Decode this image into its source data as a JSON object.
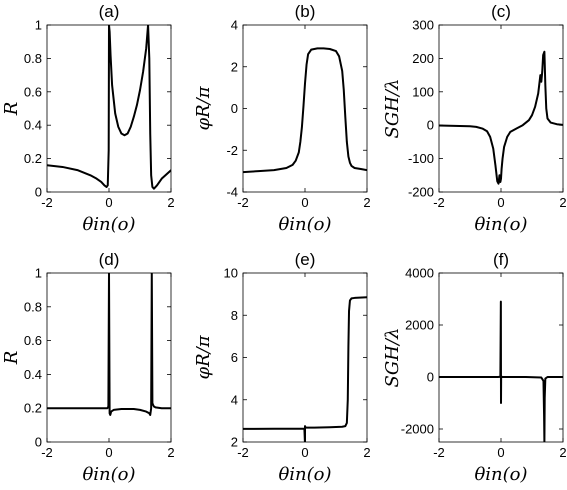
{
  "chart_data": [
    {
      "type": "line",
      "panel_label": "(a)",
      "xlabel": "θin(o)",
      "ylabel": "R",
      "xlim": [
        -2,
        2
      ],
      "ylim": [
        0,
        1
      ],
      "xticks": [
        -2,
        0,
        2
      ],
      "xtick_labels": [
        "-2",
        "0",
        "2"
      ],
      "yticks": [
        0,
        0.2,
        0.4,
        0.6,
        0.8,
        1
      ],
      "ytick_labels": [
        "0",
        "0.2",
        "0.4",
        "0.6",
        "0.8",
        "1"
      ],
      "grid": false,
      "series": [
        {
          "x": [
            -2.0,
            -1.5,
            -1.0,
            -0.6,
            -0.4,
            -0.25,
            -0.15,
            -0.08,
            -0.04,
            -0.01,
            0.0,
            0.02,
            0.05,
            0.1,
            0.2,
            0.3,
            0.4,
            0.5,
            0.6,
            0.7,
            0.8,
            0.9,
            1.0,
            1.1,
            1.2,
            1.26,
            1.3,
            1.33,
            1.36,
            1.4,
            1.45,
            1.55,
            1.7,
            2.0
          ],
          "y": [
            0.16,
            0.15,
            0.13,
            0.1,
            0.08,
            0.06,
            0.04,
            0.03,
            0.04,
            0.25,
            1.0,
            0.96,
            0.82,
            0.64,
            0.47,
            0.39,
            0.35,
            0.34,
            0.35,
            0.39,
            0.45,
            0.52,
            0.61,
            0.72,
            0.86,
            1.0,
            0.8,
            0.35,
            0.1,
            0.03,
            0.02,
            0.04,
            0.08,
            0.13
          ]
        }
      ]
    },
    {
      "type": "line",
      "panel_label": "(b)",
      "xlabel": "θin(o)",
      "ylabel": "φR/π",
      "xlim": [
        -2,
        2
      ],
      "ylim": [
        -4,
        4
      ],
      "xticks": [
        -2,
        0,
        2
      ],
      "xtick_labels": [
        "-2",
        "0",
        "2"
      ],
      "yticks": [
        -4,
        -2,
        0,
        2,
        4
      ],
      "ytick_labels": [
        "-4",
        "-2",
        "0",
        "2",
        "4"
      ],
      "grid": false,
      "series": [
        {
          "x": [
            -2.0,
            -1.5,
            -1.0,
            -0.6,
            -0.4,
            -0.3,
            -0.2,
            -0.15,
            -0.1,
            -0.05,
            0.0,
            0.05,
            0.1,
            0.2,
            0.4,
            0.6,
            0.8,
            1.0,
            1.1,
            1.2,
            1.25,
            1.3,
            1.35,
            1.4,
            1.45,
            1.5,
            1.6,
            1.8,
            2.0
          ],
          "y": [
            -3.05,
            -3.0,
            -2.95,
            -2.85,
            -2.7,
            -2.5,
            -2.1,
            -1.6,
            -0.9,
            0.1,
            1.2,
            2.1,
            2.6,
            2.82,
            2.88,
            2.88,
            2.85,
            2.75,
            2.5,
            1.8,
            0.9,
            -0.4,
            -1.6,
            -2.3,
            -2.6,
            -2.75,
            -2.85,
            -2.9,
            -2.95
          ]
        }
      ]
    },
    {
      "type": "line",
      "panel_label": "(c)",
      "xlabel": "θin(o)",
      "ylabel": "SGH/λ",
      "xlim": [
        -2,
        2
      ],
      "ylim": [
        -200,
        300
      ],
      "xticks": [
        -2,
        0,
        2
      ],
      "xtick_labels": [
        "-2",
        "0",
        "2"
      ],
      "yticks": [
        -200,
        -100,
        0,
        100,
        200,
        300
      ],
      "ytick_labels": [
        "-200",
        "-100",
        "0",
        "100",
        "200",
        "300"
      ],
      "grid": false,
      "series": [
        {
          "x": [
            -2.0,
            -1.5,
            -1.0,
            -0.8,
            -0.6,
            -0.45,
            -0.35,
            -0.25,
            -0.18,
            -0.12,
            -0.08,
            -0.05,
            -0.02,
            0.0,
            0.02,
            0.05,
            0.1,
            0.2,
            0.3,
            0.5,
            0.7,
            0.9,
            1.0,
            1.1,
            1.2,
            1.27,
            1.3,
            1.33,
            1.36,
            1.4,
            1.43,
            1.46,
            1.5,
            1.6,
            1.8,
            2.0
          ],
          "y": [
            -1,
            -2,
            -3,
            -5,
            -10,
            -18,
            -35,
            -70,
            -120,
            -168,
            -175,
            -150,
            -170,
            -160,
            -130,
            -100,
            -65,
            -35,
            -20,
            -10,
            0,
            15,
            30,
            55,
            95,
            150,
            130,
            160,
            210,
            220,
            120,
            50,
            20,
            8,
            3,
            1
          ]
        }
      ]
    },
    {
      "type": "line",
      "panel_label": "(d)",
      "xlabel": "θin(o)",
      "ylabel": "R",
      "xlim": [
        -2,
        2
      ],
      "ylim": [
        0,
        1
      ],
      "xticks": [
        -2,
        0,
        2
      ],
      "xtick_labels": [
        "-2",
        "0",
        "2"
      ],
      "yticks": [
        0,
        0.2,
        0.4,
        0.6,
        0.8,
        1
      ],
      "ytick_labels": [
        "0",
        "0.2",
        "0.4",
        "0.6",
        "0.8",
        "1"
      ],
      "grid": false,
      "series": [
        {
          "x": [
            -2.0,
            -1.0,
            -0.2,
            -0.05,
            -0.02,
            0.0,
            0.02,
            0.04,
            0.07,
            0.15,
            0.4,
            0.8,
            1.0,
            1.2,
            1.3,
            1.33,
            1.36,
            1.38,
            1.4,
            1.42,
            1.45,
            1.5,
            1.7,
            2.0
          ],
          "y": [
            0.2,
            0.2,
            0.2,
            0.2,
            0.21,
            1.0,
            0.17,
            0.16,
            0.18,
            0.19,
            0.195,
            0.195,
            0.19,
            0.18,
            0.17,
            0.16,
            0.2,
            1.0,
            0.23,
            0.22,
            0.21,
            0.205,
            0.2,
            0.2
          ]
        }
      ]
    },
    {
      "type": "line",
      "panel_label": "(e)",
      "xlabel": "θin(o)",
      "ylabel": "φR/π",
      "xlim": [
        -2,
        2
      ],
      "ylim": [
        2,
        10
      ],
      "xticks": [
        -2,
        0,
        2
      ],
      "xtick_labels": [
        "-2",
        "0",
        "2"
      ],
      "yticks": [
        2,
        4,
        6,
        8,
        10
      ],
      "ytick_labels": [
        "2",
        "4",
        "6",
        "8",
        "10"
      ],
      "grid": false,
      "series": [
        {
          "x": [
            -2.0,
            -1.0,
            -0.1,
            -0.02,
            0.0,
            0.0,
            0.02,
            0.3,
            0.8,
            1.2,
            1.3,
            1.35,
            1.38,
            1.4,
            1.42,
            1.45,
            1.5,
            1.6,
            2.0
          ],
          "y": [
            2.62,
            2.63,
            2.63,
            2.63,
            1.9,
            2.75,
            2.68,
            2.68,
            2.7,
            2.72,
            2.75,
            2.9,
            4.0,
            6.5,
            8.2,
            8.7,
            8.8,
            8.82,
            8.85
          ]
        }
      ]
    },
    {
      "type": "line",
      "panel_label": "(f)",
      "xlabel": "θin(o)",
      "ylabel": "SGH/λ",
      "xlim": [
        -2,
        2
      ],
      "ylim": [
        -2500,
        4000
      ],
      "xticks": [
        -2,
        0,
        2
      ],
      "xtick_labels": [
        "-2",
        "0",
        "2"
      ],
      "yticks": [
        -2000,
        0,
        2000,
        4000
      ],
      "ytick_labels": [
        "-2000",
        "0",
        "2000",
        "4000"
      ],
      "grid": false,
      "series": [
        {
          "x": [
            -2.0,
            -1.0,
            -0.1,
            -0.02,
            -0.005,
            0.0,
            0.005,
            0.02,
            0.1,
            0.8,
            1.3,
            1.37,
            1.39,
            1.4,
            1.41,
            1.43,
            1.5,
            2.0
          ],
          "y": [
            0,
            0,
            0,
            10,
            2900,
            -1000,
            40,
            0,
            0,
            0,
            -20,
            -150,
            -1500,
            -2500,
            -800,
            -60,
            0,
            0
          ]
        }
      ]
    }
  ]
}
